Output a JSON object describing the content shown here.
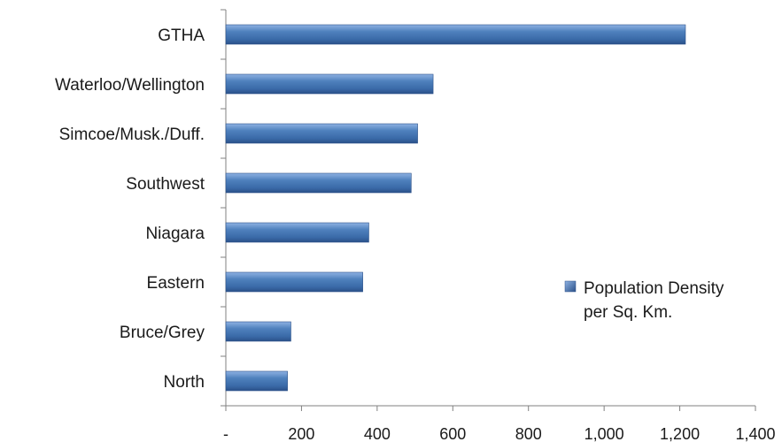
{
  "chart_data": {
    "type": "bar",
    "orientation": "horizontal",
    "categories": [
      "GTHA",
      "Waterloo/Wellington",
      "Simcoe/Musk./Duff.",
      "Southwest",
      "Niagara",
      "Eastern",
      "Bruce/Grey",
      "North"
    ],
    "series": [
      {
        "name": "Population Density per Sq. Km.",
        "values": [
          1215,
          548,
          507,
          490,
          378,
          362,
          172,
          163
        ],
        "color": "#4f81bd"
      }
    ],
    "xlim": [
      0,
      1400
    ],
    "x_ticks": [
      0,
      200,
      400,
      600,
      800,
      1000,
      1200,
      1400
    ],
    "x_tick_labels": [
      "-",
      "200",
      "400",
      "600",
      "800",
      "1,000",
      "1,200",
      "1,400"
    ],
    "legend": {
      "position": "right",
      "lines": [
        "Population Density",
        "per Sq. Km."
      ]
    },
    "title": "",
    "xlabel": "",
    "ylabel": "",
    "grid": false
  }
}
